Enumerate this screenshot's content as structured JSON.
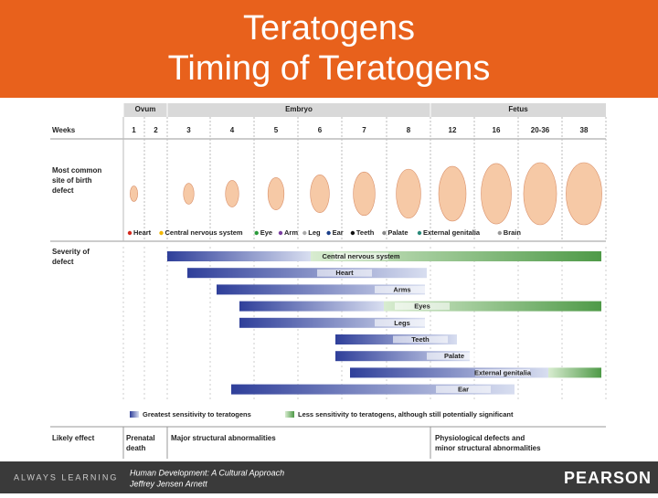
{
  "header": {
    "title_lines": [
      "Teratogens",
      "Timing of Teratogens"
    ]
  },
  "figure": {
    "periods": [
      "Ovum",
      "Embryo",
      "Fetus"
    ],
    "weeks_label": "Weeks",
    "weeks": [
      "1",
      "2",
      "3",
      "4",
      "5",
      "6",
      "7",
      "8",
      "12",
      "16",
      "20-36",
      "38"
    ],
    "site_label": [
      "Most common",
      "site of birth",
      "defect"
    ],
    "sites": [
      "Heart",
      "Central nervous system",
      "Eye",
      "Arm",
      "Leg",
      "Ear",
      "Teeth",
      "Palate",
      "External genitalia",
      "Brain"
    ],
    "severity_label": [
      "Severity of",
      "defect"
    ],
    "bars": [
      "Central nervous system",
      "Heart",
      "Arms",
      "Eyes",
      "Legs",
      "Teeth",
      "Palate",
      "External genitalia",
      "Ear"
    ],
    "sensitivity_legend": [
      "Greatest sensitivity to teratogens",
      "Less sensitivity to teratogens, although still potentially significant"
    ],
    "effect_label": "Likely effect",
    "effects": [
      [
        "Prenatal",
        "death"
      ],
      [
        "Major structural abnormalities"
      ],
      [
        "Physiological defects and",
        "minor structural abnormalities"
      ]
    ]
  },
  "footer": {
    "tagline": "ALWAYS LEARNING",
    "citation_lines": [
      "Human Development: A Cultural Approach",
      "Jeffrey Jensen Arnett"
    ],
    "brand": "PEARSON"
  }
}
